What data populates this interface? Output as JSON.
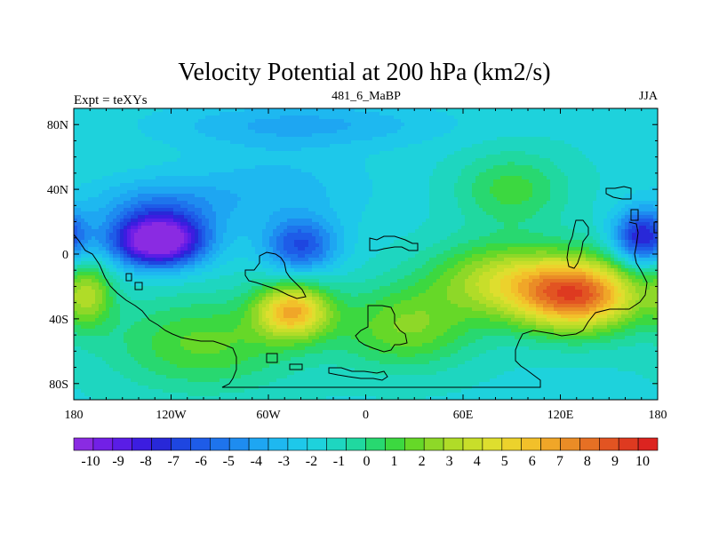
{
  "chart_data": {
    "type": "heatmap",
    "title": "Velocity Potential at 200 hPa (km2/s)",
    "subtitle_left": "Expt = teXYs",
    "subtitle_center": "481_6_MaBP",
    "subtitle_right": "JJA",
    "x_ticks": [
      "180",
      "120W",
      "60W",
      "0",
      "60E",
      "120E",
      "180"
    ],
    "y_ticks": [
      "80N",
      "40N",
      "0",
      "40S",
      "80S"
    ],
    "colorbar_labels": [
      "-10",
      "-9",
      "-8",
      "-7",
      "-6",
      "-5",
      "-4",
      "-3",
      "-2",
      "-1",
      "0",
      "1",
      "2",
      "3",
      "4",
      "5",
      "6",
      "7",
      "8",
      "9",
      "10"
    ],
    "colorbar_colors": [
      "#8a2be2",
      "#7220e6",
      "#5a1de6",
      "#3c1de0",
      "#2828d8",
      "#1e46e0",
      "#1e5ce8",
      "#1e74ec",
      "#1e8cf0",
      "#1ea6f2",
      "#1eb8f0",
      "#1ec8ea",
      "#1ed2dc",
      "#1ed6c0",
      "#20d8a0",
      "#28d870",
      "#3cd840",
      "#66d828",
      "#8ed828",
      "#b0dc28",
      "#c8de2a",
      "#dede2e",
      "#ecd22c",
      "#f2c02a",
      "#f0a628",
      "#ea8c26",
      "#e67024",
      "#e25422",
      "#de3a20",
      "#dc2420"
    ],
    "field_range": [
      -10,
      10
    ],
    "field_blobs": [
      {
        "lon": -128,
        "lat": 8,
        "amp": -10,
        "slon": 20,
        "slat": 11
      },
      {
        "lon": -128,
        "lat": 30,
        "amp": -2.5,
        "slon": 30,
        "slat": 12
      },
      {
        "lon": -40,
        "lat": 5,
        "amp": -4.5,
        "slon": 16,
        "slat": 12
      },
      {
        "lon": -55,
        "lat": 40,
        "amp": -1.5,
        "slon": 40,
        "slat": 18
      },
      {
        "lon": 170,
        "lat": 10,
        "amp": -6,
        "slon": 12,
        "slat": 12
      },
      {
        "lon": -45,
        "lat": -35,
        "amp": 7,
        "slon": 16,
        "slat": 12
      },
      {
        "lon": 130,
        "lat": -25,
        "amp": 9.5,
        "slon": 28,
        "slat": 16
      },
      {
        "lon": 80,
        "lat": -15,
        "amp": 4,
        "slon": 30,
        "slat": 16
      },
      {
        "lon": 90,
        "lat": 40,
        "amp": 2.5,
        "slon": 24,
        "slat": 16
      },
      {
        "lon": 25,
        "lat": -45,
        "amp": 3.5,
        "slon": 30,
        "slat": 18
      },
      {
        "lon": -170,
        "lat": -25,
        "amp": 3.5,
        "slon": 10,
        "slat": 14
      },
      {
        "lon": -100,
        "lat": -55,
        "amp": 3,
        "slon": 40,
        "slat": 20
      },
      {
        "lon": -40,
        "lat": 80,
        "amp": -2,
        "slon": 60,
        "slat": 10
      }
    ],
    "field_base": -1.5
  }
}
